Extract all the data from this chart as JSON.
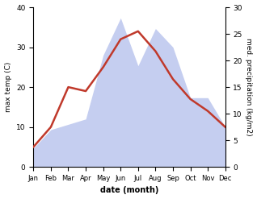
{
  "months": [
    "Jan",
    "Feb",
    "Mar",
    "Apr",
    "May",
    "Jun",
    "Jul",
    "Aug",
    "Sep",
    "Oct",
    "Nov",
    "Dec"
  ],
  "temperature": [
    5,
    10,
    20,
    19,
    25,
    32,
    34,
    29,
    22,
    17,
    14,
    10
  ],
  "precipitation": [
    3.5,
    7,
    8,
    9,
    21,
    28,
    19,
    26,
    22.5,
    13,
    13,
    7.5
  ],
  "temp_color": "#c0392b",
  "precip_fill_color": "#c5cef0",
  "temp_ylim": [
    0,
    40
  ],
  "precip_ylim": [
    0,
    30
  ],
  "temp_yticks": [
    0,
    10,
    20,
    30,
    40
  ],
  "precip_yticks": [
    0,
    5,
    10,
    15,
    20,
    25,
    30
  ],
  "xlabel": "date (month)",
  "ylabel_left": "max temp (C)",
  "ylabel_right": "med. precipitation (kg/m2)",
  "fig_width": 3.18,
  "fig_height": 2.47,
  "background_color": "#ffffff"
}
